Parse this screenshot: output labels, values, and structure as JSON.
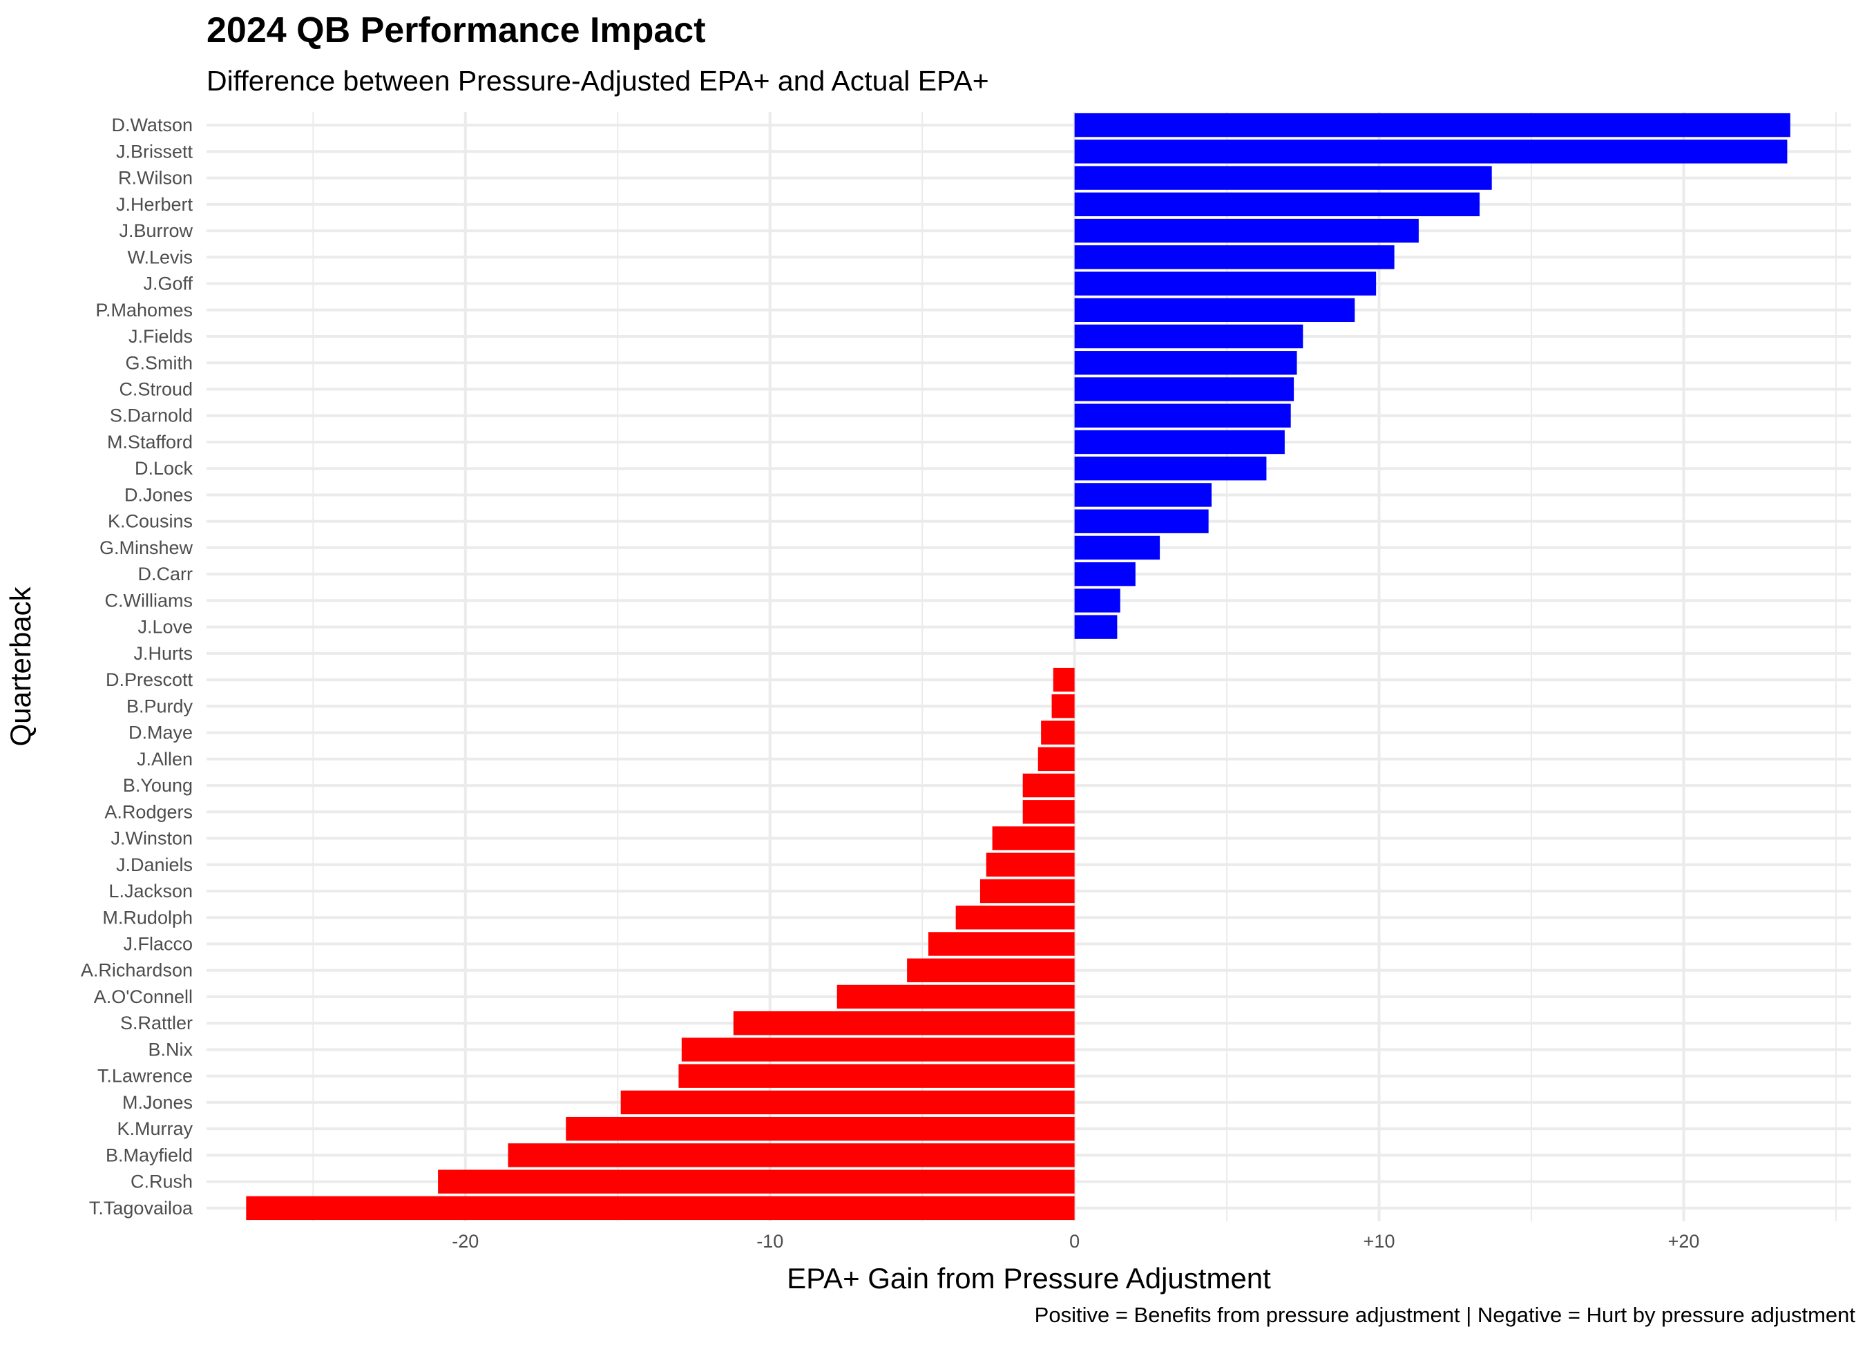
{
  "chart_data": {
    "type": "bar",
    "orientation": "horizontal",
    "title": "2024 QB Performance Impact",
    "subtitle": "Difference between Pressure-Adjusted EPA+ and Actual EPA+",
    "xlabel": "EPA+ Gain from Pressure Adjustment",
    "ylabel": "Quarterback",
    "caption": "Positive = Benefits from pressure adjustment | Negative = Hurt by pressure adjustment",
    "xlim": [
      -28.5,
      25.5
    ],
    "x_ticks": [
      -20,
      -10,
      0,
      10,
      20
    ],
    "x_tick_labels": [
      "-20",
      "-10",
      "0",
      "+10",
      "+20"
    ],
    "grid": true,
    "legend": "none",
    "colors": {
      "positive": "#0000FF",
      "negative": "#FF0000",
      "grid": "#ebebeb"
    },
    "categories": [
      "D.Watson",
      "J.Brissett",
      "R.Wilson",
      "J.Herbert",
      "J.Burrow",
      "W.Levis",
      "J.Goff",
      "P.Mahomes",
      "J.Fields",
      "G.Smith",
      "C.Stroud",
      "S.Darnold",
      "M.Stafford",
      "D.Lock",
      "D.Jones",
      "K.Cousins",
      "G.Minshew",
      "D.Carr",
      "C.Williams",
      "J.Love",
      "J.Hurts",
      "D.Prescott",
      "B.Purdy",
      "D.Maye",
      "J.Allen",
      "B.Young",
      "A.Rodgers",
      "J.Winston",
      "J.Daniels",
      "L.Jackson",
      "M.Rudolph",
      "J.Flacco",
      "A.Richardson",
      "A.O'Connell",
      "S.Rattler",
      "B.Nix",
      "T.Lawrence",
      "M.Jones",
      "K.Murray",
      "B.Mayfield",
      "C.Rush",
      "T.Tagovailoa"
    ],
    "values": [
      23.5,
      23.4,
      13.7,
      13.3,
      11.3,
      10.5,
      9.9,
      9.2,
      7.5,
      7.3,
      7.2,
      7.1,
      6.9,
      6.3,
      4.5,
      4.4,
      2.8,
      2.0,
      1.5,
      1.4,
      0,
      -0.7,
      -0.75,
      -1.1,
      -1.2,
      -1.7,
      -1.7,
      -2.7,
      -2.9,
      -3.1,
      -3.9,
      -4.8,
      -5.5,
      -7.8,
      -11.2,
      -12.9,
      -13.0,
      -14.9,
      -16.7,
      -18.6,
      -20.9,
      -27.2
    ]
  }
}
